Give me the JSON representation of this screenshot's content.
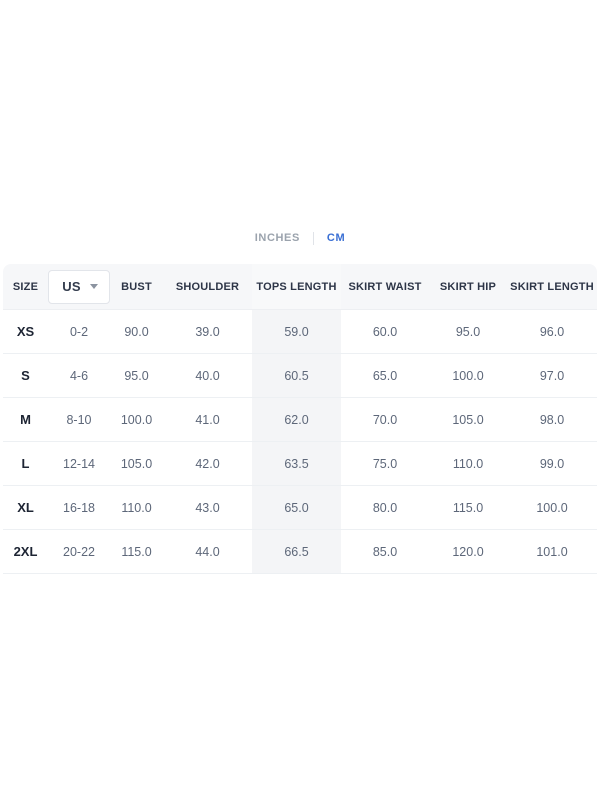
{
  "unit_tabs": {
    "inches_label": "INCHES",
    "cm_label": "CM",
    "active": "CM",
    "active_color": "#3a6fd4",
    "inactive_color": "#9ba3ad"
  },
  "table": {
    "header": {
      "size": "SIZE",
      "unit_selector_value": "US",
      "bust": "BUST",
      "shoulder": "SHOULDER",
      "tops_length": "TOPS LENGTH",
      "skirt_waist": "SKIRT WAIST",
      "skirt_hip": "SKIRT HIP",
      "skirt_length": "SKIRT LENGTH"
    },
    "highlighted_column": "tops_length",
    "row_keys": [
      "size",
      "us",
      "bust",
      "shoulder",
      "tops_length",
      "skirt_waist",
      "skirt_hip",
      "skirt_length"
    ],
    "rows": [
      {
        "size": "XS",
        "us": "0-2",
        "bust": "90.0",
        "shoulder": "39.0",
        "tops_length": "59.0",
        "skirt_waist": "60.0",
        "skirt_hip": "95.0",
        "skirt_length": "96.0"
      },
      {
        "size": "S",
        "us": "4-6",
        "bust": "95.0",
        "shoulder": "40.0",
        "tops_length": "60.5",
        "skirt_waist": "65.0",
        "skirt_hip": "100.0",
        "skirt_length": "97.0"
      },
      {
        "size": "M",
        "us": "8-10",
        "bust": "100.0",
        "shoulder": "41.0",
        "tops_length": "62.0",
        "skirt_waist": "70.0",
        "skirt_hip": "105.0",
        "skirt_length": "98.0"
      },
      {
        "size": "L",
        "us": "12-14",
        "bust": "105.0",
        "shoulder": "42.0",
        "tops_length": "63.5",
        "skirt_waist": "75.0",
        "skirt_hip": "110.0",
        "skirt_length": "99.0"
      },
      {
        "size": "XL",
        "us": "16-18",
        "bust": "110.0",
        "shoulder": "43.0",
        "tops_length": "65.0",
        "skirt_waist": "80.0",
        "skirt_hip": "115.0",
        "skirt_length": "100.0"
      },
      {
        "size": "2XL",
        "us": "20-22",
        "bust": "115.0",
        "shoulder": "44.0",
        "tops_length": "66.5",
        "skirt_waist": "85.0",
        "skirt_hip": "120.0",
        "skirt_length": "101.0"
      }
    ]
  },
  "colors": {
    "header_bg": "#f6f7f9",
    "highlight_bg": "#f4f5f7",
    "row_border": "#edf0f3",
    "header_text": "#2d3547",
    "data_text": "#5d6779",
    "size_text": "#1d2433"
  }
}
